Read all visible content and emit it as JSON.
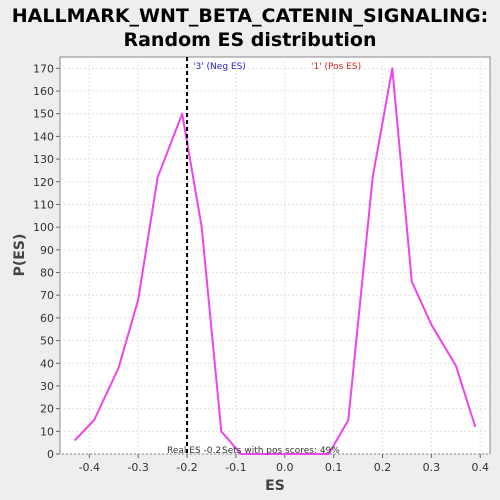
{
  "chart_data": {
    "type": "line",
    "title_line1": "HALLMARK_WNT_BETA_CATENIN_SIGNALING:",
    "title_line2": "Random ES distribution",
    "xlabel": "ES",
    "ylabel": "P(ES)",
    "xlim": [
      -0.46,
      0.42
    ],
    "ylim": [
      0,
      175
    ],
    "x_ticks": [
      "-0.4",
      "-0.3",
      "-0.2",
      "-0.1",
      "0.0",
      "0.1",
      "0.2",
      "0.3",
      "0.4"
    ],
    "x_tick_values": [
      -0.4,
      -0.3,
      -0.2,
      -0.1,
      0.0,
      0.1,
      0.2,
      0.3,
      0.4
    ],
    "y_ticks": [
      "0",
      "10",
      "20",
      "30",
      "40",
      "50",
      "60",
      "70",
      "80",
      "90",
      "100",
      "110",
      "120",
      "130",
      "140",
      "150",
      "160",
      "170"
    ],
    "y_tick_values": [
      0,
      10,
      20,
      30,
      40,
      50,
      60,
      70,
      80,
      90,
      100,
      110,
      120,
      130,
      140,
      150,
      160,
      170
    ],
    "grid": true,
    "line_color": "#ee44ee",
    "series": [
      {
        "points": [
          [
            -0.43,
            6
          ],
          [
            -0.39,
            15
          ],
          [
            -0.34,
            38
          ],
          [
            -0.3,
            68
          ],
          [
            -0.26,
            122
          ],
          [
            -0.21,
            150
          ],
          [
            -0.17,
            100
          ],
          [
            -0.13,
            10
          ],
          [
            -0.09,
            0
          ],
          [
            0.09,
            0
          ],
          [
            0.13,
            15
          ],
          [
            0.18,
            122
          ],
          [
            0.22,
            170
          ],
          [
            0.26,
            76
          ],
          [
            0.3,
            57
          ],
          [
            0.35,
            39
          ],
          [
            0.39,
            12
          ]
        ]
      }
    ],
    "real_es": -0.2,
    "real_es_label": "Real ES -0.2",
    "neg_label": "'3' (Neg ES)",
    "neg_color": "#2222cc",
    "pos_label": "'1' (Pos ES)",
    "pos_color": "#dd2222",
    "sets_label": "Sets with pos scores: 49%"
  }
}
